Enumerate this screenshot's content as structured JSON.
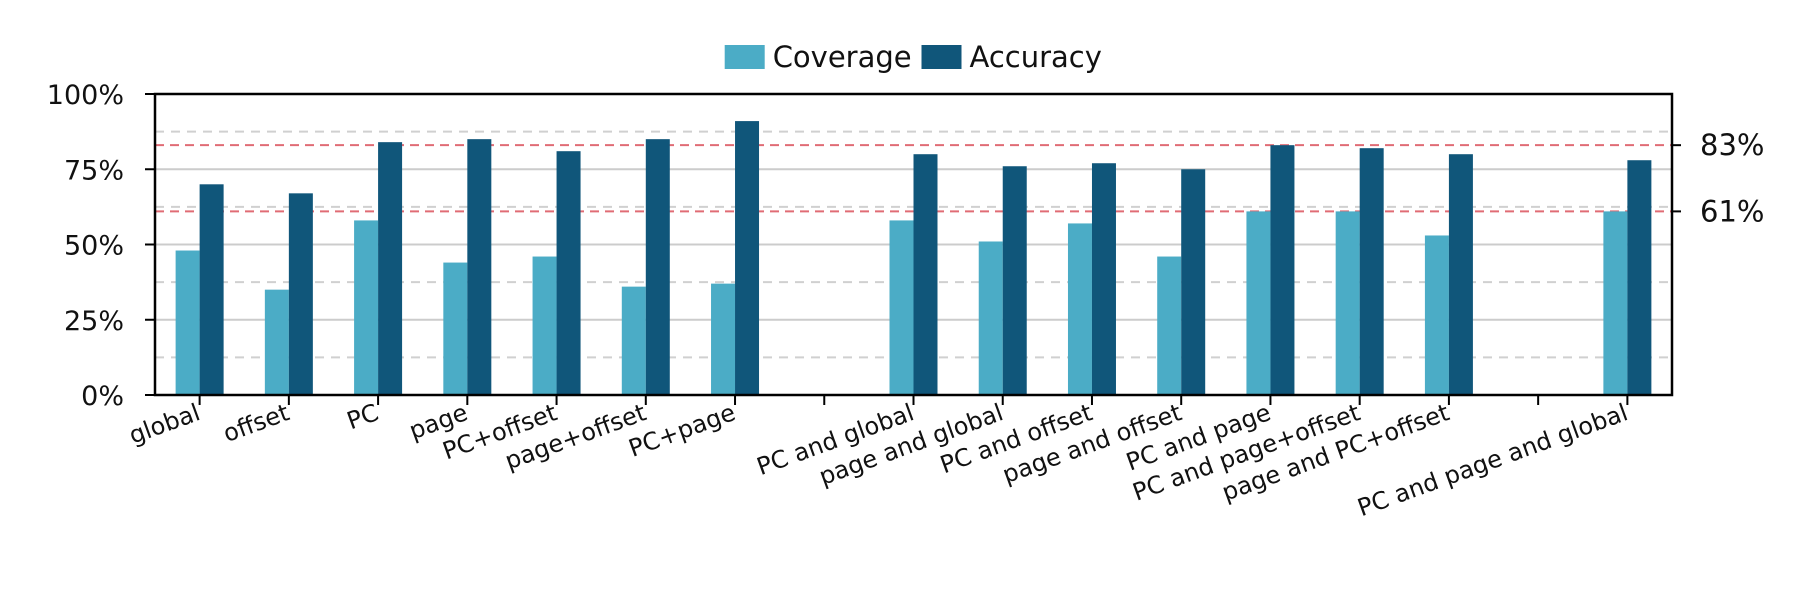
{
  "chart_data": {
    "type": "bar",
    "categories": [
      "global",
      "offset",
      "PC",
      "page",
      "PC+offset",
      "page+offset",
      "PC+page",
      "",
      "PC and global",
      "page and global",
      "PC and offset",
      "page and offset",
      "PC and page",
      "PC and page+offset",
      "page and PC+offset",
      "",
      "PC and page and global"
    ],
    "series": [
      {
        "name": "Coverage",
        "color": "#4bacc6",
        "values": [
          48,
          35,
          58,
          44,
          46,
          36,
          37,
          null,
          58,
          51,
          57,
          46,
          61,
          61,
          53,
          null,
          61
        ]
      },
      {
        "name": "Accuracy",
        "color": "#10567a",
        "values": [
          70,
          67,
          84,
          85,
          81,
          85,
          91,
          null,
          80,
          76,
          77,
          75,
          83,
          82,
          80,
          null,
          78
        ]
      }
    ],
    "ylim": [
      0,
      100
    ],
    "yticks": [
      "0%",
      "25%",
      "50%",
      "75%",
      "100%"
    ],
    "ytick_values": [
      0,
      25,
      50,
      75,
      100
    ],
    "minor_grid_values": [
      12.5,
      37.5,
      62.5,
      87.5
    ],
    "reference_lines": [
      {
        "value": 83,
        "label": "83%",
        "color": "#e06c75"
      },
      {
        "value": 61,
        "label": "61%",
        "color": "#e06c75"
      }
    ],
    "legend": {
      "placement": "top-center",
      "labels": [
        "Coverage",
        "Accuracy"
      ]
    },
    "grid": true,
    "title": "",
    "xlabel": "",
    "ylabel": ""
  }
}
